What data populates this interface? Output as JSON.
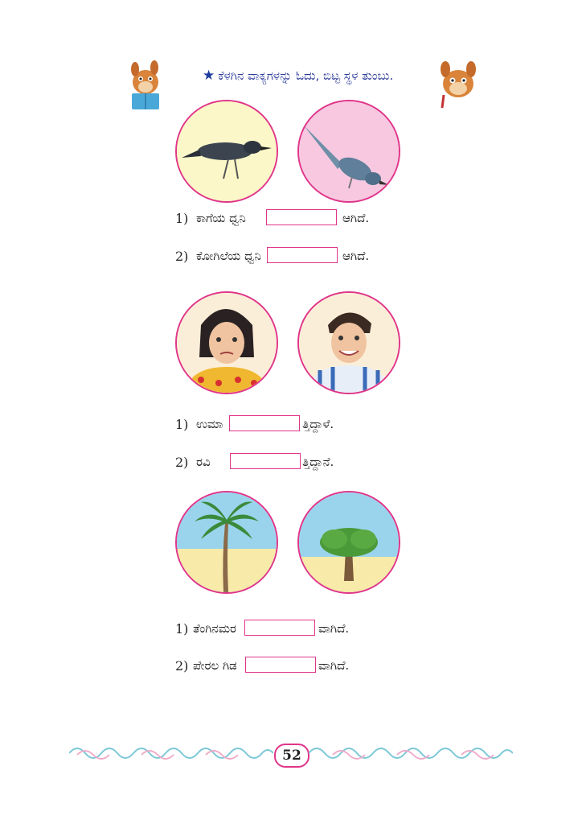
{
  "header": {
    "instruction": "ಕೆಳಗಿನ ವಾಕ್ಯಗಳನ್ನು ಓದು, ಬಿಟ್ಟ ಸ್ಥಳ ತುಂಬು."
  },
  "sections": [
    {
      "images": [
        "crow-image",
        "cuckoo-image"
      ],
      "rows": [
        {
          "num": "1)",
          "before": "ಕಾಗೆಯ ಧ್ವನಿ",
          "after": "ಆಗಿದೆ."
        },
        {
          "num": "2)",
          "before": "ಕೋಗಿಲೆಯ ಧ್ವನಿ",
          "after": "ಆಗಿದೆ."
        }
      ]
    },
    {
      "images": [
        "crying-girl-image",
        "smiling-boy-image"
      ],
      "rows": [
        {
          "num": "1)",
          "before": "ಉಮಾ",
          "after": "ತ್ತಿದ್ದಾಳೆ."
        },
        {
          "num": "2)",
          "before": "ರವಿ",
          "after": "ತ್ತಿದ್ದಾನೆ."
        }
      ]
    },
    {
      "images": [
        "coconut-tree-image",
        "guava-tree-image"
      ],
      "rows": [
        {
          "num": "1)",
          "before": "ತೆಂಗಿನಮರ",
          "after": "ವಾಗಿದೆ."
        },
        {
          "num": "2)",
          "before": "ಪೇರಲ ಗಿಡ",
          "after": "ವಾಗಿದೆ."
        }
      ]
    }
  ],
  "footer": {
    "page_number": "52"
  },
  "colors": {
    "accent": "#e0358a",
    "instruction_text": "#2b3a9a",
    "border_teal": "#7ec8d8",
    "border_pink": "#f0a8c8"
  }
}
